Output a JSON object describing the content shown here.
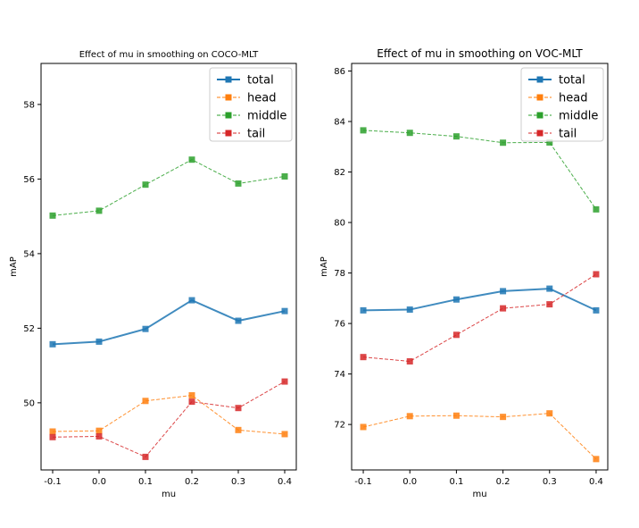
{
  "chart_data": [
    {
      "type": "line",
      "title": "Effect of mu in smoothing on COCO-MLT",
      "xlabel": "mu",
      "ylabel": "mAP",
      "x": [
        -0.1,
        0.0,
        0.1,
        0.2,
        0.3,
        0.4
      ],
      "xtick_labels": [
        "-0.1",
        "0.0",
        "0.1",
        "0.2",
        "0.3",
        "0.4"
      ],
      "yticks": [
        50,
        52,
        54,
        56,
        58
      ],
      "ylim": [
        48.2,
        59.1
      ],
      "legend_position": "upper-right",
      "series": [
        {
          "name": "total",
          "color": "#1f77b4",
          "style": "solid",
          "values": [
            51.57,
            51.64,
            51.98,
            52.75,
            52.2,
            52.46
          ]
        },
        {
          "name": "head",
          "color": "#ff7f0e",
          "style": "dashed",
          "values": [
            49.23,
            49.25,
            50.05,
            50.2,
            49.27,
            49.16
          ]
        },
        {
          "name": "middle",
          "color": "#2ca02c",
          "style": "dashed",
          "values": [
            55.02,
            55.15,
            55.85,
            56.52,
            55.88,
            56.07
          ]
        },
        {
          "name": "tail",
          "color": "#d62728",
          "style": "dashed",
          "values": [
            49.08,
            49.1,
            48.55,
            50.03,
            49.86,
            50.57
          ]
        }
      ]
    },
    {
      "type": "line",
      "title": "Effect of mu in smoothing on VOC-MLT",
      "xlabel": "mu",
      "ylabel": "mAP",
      "x": [
        -0.1,
        0.0,
        0.1,
        0.2,
        0.3,
        0.4
      ],
      "xtick_labels": [
        "-0.1",
        "0.0",
        "0.1",
        "0.2",
        "0.3",
        "0.4"
      ],
      "yticks": [
        72,
        74,
        76,
        78,
        80,
        82,
        84,
        86
      ],
      "ylim": [
        70.2,
        86.3
      ],
      "legend_position": "upper-right",
      "series": [
        {
          "name": "total",
          "color": "#1f77b4",
          "style": "solid",
          "values": [
            76.52,
            76.55,
            76.95,
            77.28,
            77.38,
            76.52
          ]
        },
        {
          "name": "head",
          "color": "#ff7f0e",
          "style": "dashed",
          "values": [
            71.9,
            72.33,
            72.35,
            72.3,
            72.44,
            70.63
          ]
        },
        {
          "name": "middle",
          "color": "#2ca02c",
          "style": "dashed",
          "values": [
            83.65,
            83.55,
            83.41,
            83.16,
            83.17,
            80.52
          ]
        },
        {
          "name": "tail",
          "color": "#d62728",
          "style": "dashed",
          "values": [
            74.67,
            74.5,
            75.55,
            76.6,
            76.76,
            77.95
          ]
        }
      ]
    }
  ]
}
